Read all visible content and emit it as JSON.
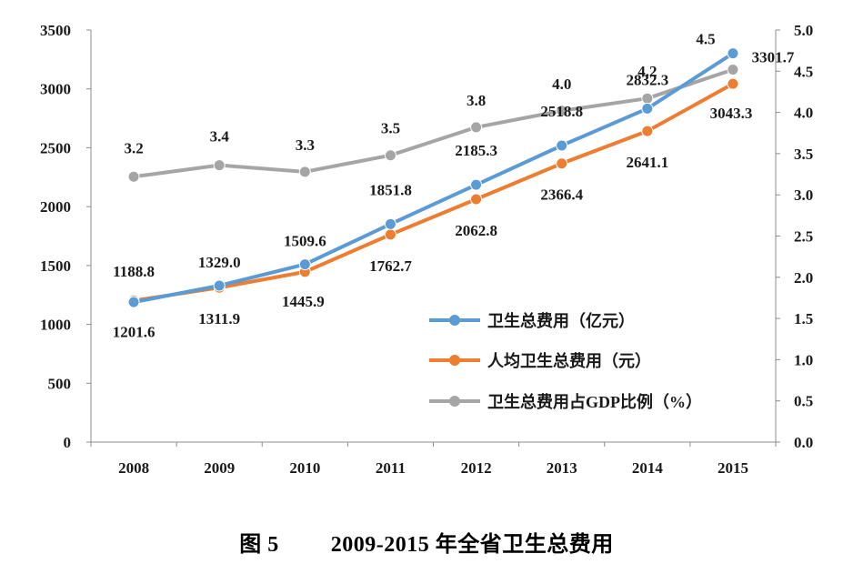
{
  "caption": {
    "label": "图 5",
    "text": "2009-2015 年全省卫生总费用"
  },
  "chart_data": {
    "type": "line",
    "categories": [
      "2008",
      "2009",
      "2010",
      "2011",
      "2012",
      "2013",
      "2014",
      "2015"
    ],
    "y_left": {
      "min": 0,
      "max": 3500,
      "step": 500,
      "ticks": [
        "0",
        "500",
        "1000",
        "1500",
        "2000",
        "2500",
        "3000",
        "3500"
      ]
    },
    "y_right": {
      "min": 0,
      "max": 5,
      "step": 0.5,
      "ticks": [
        "0.0",
        "0.5",
        "1.0",
        "1.5",
        "2.0",
        "2.5",
        "3.0",
        "3.5",
        "4.0",
        "4.5",
        "5.0"
      ]
    },
    "grid": false,
    "legend_position": "bottom-right",
    "series": [
      {
        "name": "卫生总费用（亿元）",
        "axis": "left",
        "color": "#5B9BD5",
        "values": [
          1188.8,
          1329.0,
          1509.6,
          1851.8,
          2185.3,
          2518.8,
          2832.3,
          3301.7
        ],
        "labels": [
          "1188.8",
          "1329.0",
          "1509.6",
          "1851.8",
          "2185.3",
          "2518.8",
          "2832.3",
          "3301.7"
        ]
      },
      {
        "name": "人均卫生总费用（元）",
        "axis": "left",
        "color": "#ED7D31",
        "values": [
          1201.6,
          1311.9,
          1445.9,
          1762.7,
          2062.8,
          2366.4,
          2641.1,
          3043.3
        ],
        "labels": [
          "1201.6",
          "1311.9",
          "1445.9",
          "1762.7",
          "2062.8",
          "2366.4",
          "2641.1",
          "3043.3"
        ]
      },
      {
        "name": "卫生总费用占GDP比例（%）",
        "axis": "right",
        "color": "#A5A5A5",
        "values": [
          3.22,
          3.36,
          3.28,
          3.48,
          3.82,
          4.02,
          4.17,
          4.52
        ],
        "labels": [
          "3.2",
          "3.4",
          "3.3",
          "3.5",
          "3.8",
          "4.0",
          "4.2",
          "4.5"
        ]
      }
    ]
  }
}
